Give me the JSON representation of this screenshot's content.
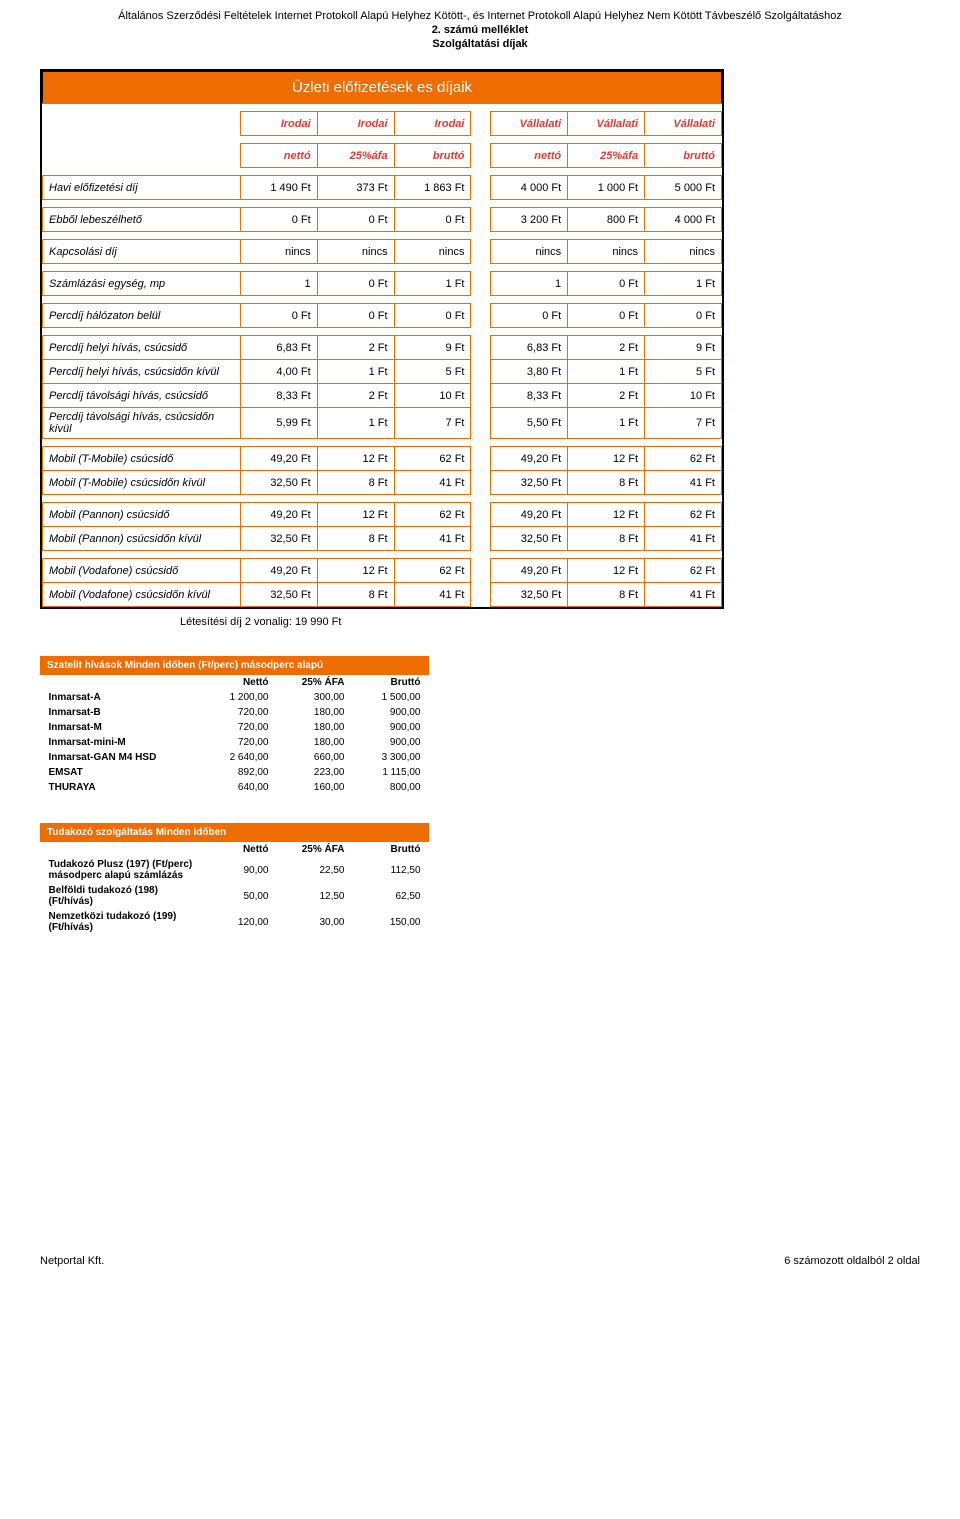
{
  "header": {
    "line1": "Általános Szerződési Feltételek Internet Protokoll Alapú Helyhez Kötött-, és Internet Protokoll Alapú Helyhez Nem Kötött Távbeszélő Szolgáltatáshoz",
    "line2": "2. számú melléklet",
    "line3": "Szolgáltatási díjak"
  },
  "main": {
    "title": "Üzleti előfizetések es díjaik",
    "col_h_left": [
      "Irodai",
      "Irodai",
      "Irodai"
    ],
    "col_h_right": [
      "Vállalati",
      "Vállalati",
      "Vállalati"
    ],
    "sub_h": [
      "nettó",
      "25%áfa",
      "bruttó",
      "nettó",
      "25%áfa",
      "bruttó"
    ],
    "groups": [
      [
        {
          "label": "Havi előfizetési díj",
          "l": [
            "1 490 Ft",
            "373 Ft",
            "1 863 Ft"
          ],
          "r": [
            "4 000 Ft",
            "1 000 Ft",
            "5 000 Ft"
          ]
        }
      ],
      [
        {
          "label": "Ebből lebeszélhető",
          "l": [
            "0 Ft",
            "0 Ft",
            "0 Ft"
          ],
          "r": [
            "3 200 Ft",
            "800 Ft",
            "4 000 Ft"
          ]
        }
      ],
      [
        {
          "label": "Kapcsolási díj",
          "l": [
            "nincs",
            "nincs",
            "nincs"
          ],
          "r": [
            "nincs",
            "nincs",
            "nincs"
          ]
        }
      ],
      [
        {
          "label": "Számlázási egység, mp",
          "l": [
            "1",
            "0 Ft",
            "1 Ft"
          ],
          "r": [
            "1",
            "0 Ft",
            "1 Ft"
          ]
        }
      ],
      [
        {
          "label": "Percdíj hálózaton belül",
          "l": [
            "0 Ft",
            "0 Ft",
            "0 Ft"
          ],
          "r": [
            "0 Ft",
            "0 Ft",
            "0 Ft"
          ]
        }
      ],
      [
        {
          "label": "Percdíj helyi hívás, csúcsidő",
          "l": [
            "6,83 Ft",
            "2 Ft",
            "9 Ft"
          ],
          "r": [
            "6,83 Ft",
            "2 Ft",
            "9 Ft"
          ]
        },
        {
          "label": "Percdíj helyi hívás, csúcsidőn kívül",
          "l": [
            "4,00 Ft",
            "1 Ft",
            "5 Ft"
          ],
          "r": [
            "3,80 Ft",
            "1 Ft",
            "5 Ft"
          ]
        },
        {
          "label": "Percdíj távolsági hívás, csúcsidő",
          "l": [
            "8,33 Ft",
            "2 Ft",
            "10 Ft"
          ],
          "r": [
            "8,33 Ft",
            "2 Ft",
            "10 Ft"
          ]
        },
        {
          "label": "Percdíj távolsági hívás, csúcsidőn kívül",
          "l": [
            "5,99 Ft",
            "1 Ft",
            "7 Ft"
          ],
          "r": [
            "5,50 Ft",
            "1 Ft",
            "7 Ft"
          ]
        }
      ],
      [
        {
          "label": "Mobil (T-Mobile) csúcsidő",
          "l": [
            "49,20 Ft",
            "12 Ft",
            "62 Ft"
          ],
          "r": [
            "49,20 Ft",
            "12 Ft",
            "62 Ft"
          ]
        },
        {
          "label": "Mobil (T-Mobile) csúcsidőn kívül",
          "l": [
            "32,50 Ft",
            "8 Ft",
            "41 Ft"
          ],
          "r": [
            "32,50 Ft",
            "8 Ft",
            "41 Ft"
          ]
        }
      ],
      [
        {
          "label": "Mobil (Pannon) csúcsidő",
          "l": [
            "49,20 Ft",
            "12 Ft",
            "62 Ft"
          ],
          "r": [
            "49,20 Ft",
            "12 Ft",
            "62 Ft"
          ]
        },
        {
          "label": "Mobil (Pannon) csúcsidőn kívül",
          "l": [
            "32,50 Ft",
            "8 Ft",
            "41 Ft"
          ],
          "r": [
            "32,50 Ft",
            "8 Ft",
            "41 Ft"
          ]
        }
      ],
      [
        {
          "label": "Mobil (Vodafone) csúcsidő",
          "l": [
            "49,20 Ft",
            "12 Ft",
            "62 Ft"
          ],
          "r": [
            "49,20 Ft",
            "12 Ft",
            "62 Ft"
          ]
        },
        {
          "label": "Mobil (Vodafone) csúcsidőn kívül",
          "l": [
            "32,50 Ft",
            "8 Ft",
            "41 Ft"
          ],
          "r": [
            "32,50 Ft",
            "8 Ft",
            "41 Ft"
          ]
        }
      ]
    ],
    "setup_fee": "Létesítési díj 2 vonalig: 19 990 Ft"
  },
  "sat": {
    "title": "Szatelit hívások Minden időben (Ft/perc) másodperc alapú",
    "cols": [
      "Nettó",
      "25% ÁFA",
      "Bruttó"
    ],
    "rows": [
      {
        "n": "Inmarsat-A",
        "v": [
          "1 200,00",
          "300,00",
          "1 500,00"
        ]
      },
      {
        "n": "Inmarsat-B",
        "v": [
          "720,00",
          "180,00",
          "900,00"
        ]
      },
      {
        "n": "Inmarsat-M",
        "v": [
          "720,00",
          "180,00",
          "900,00"
        ]
      },
      {
        "n": "Inmarsat-mini-M",
        "v": [
          "720,00",
          "180,00",
          "900,00"
        ]
      },
      {
        "n": "Inmarsat-GAN M4 HSD",
        "v": [
          "2 640,00",
          "660,00",
          "3 300,00"
        ]
      },
      {
        "n": "EMSAT",
        "v": [
          "892,00",
          "223,00",
          "1 115,00"
        ]
      },
      {
        "n": "THURAYA",
        "v": [
          "640,00",
          "160,00",
          "800,00"
        ]
      }
    ]
  },
  "info": {
    "title": "Tudakozó szolgáltatás Minden időben",
    "cols": [
      "Nettó",
      "25% ÁFA",
      "Bruttó"
    ],
    "rows": [
      {
        "n": "Tudakozó Plusz (197) (Ft/perc) másodperc alapú számlázás",
        "v": [
          "90,00",
          "22,50",
          "112,50"
        ]
      },
      {
        "n": "Belföldi tudakozó (198) (Ft/hívás)",
        "v": [
          "50,00",
          "12,50",
          "62,50"
        ]
      },
      {
        "n": "Nemzetközi tudakozó (199) (Ft/hívás)",
        "v": [
          "120,00",
          "30,00",
          "150,00"
        ]
      }
    ]
  },
  "footer": {
    "left": "Netportal Kft.",
    "right": "6 számozott oldalból 2 oldal"
  },
  "colors": {
    "orange": "#ef6c00",
    "red": "#e53935"
  }
}
